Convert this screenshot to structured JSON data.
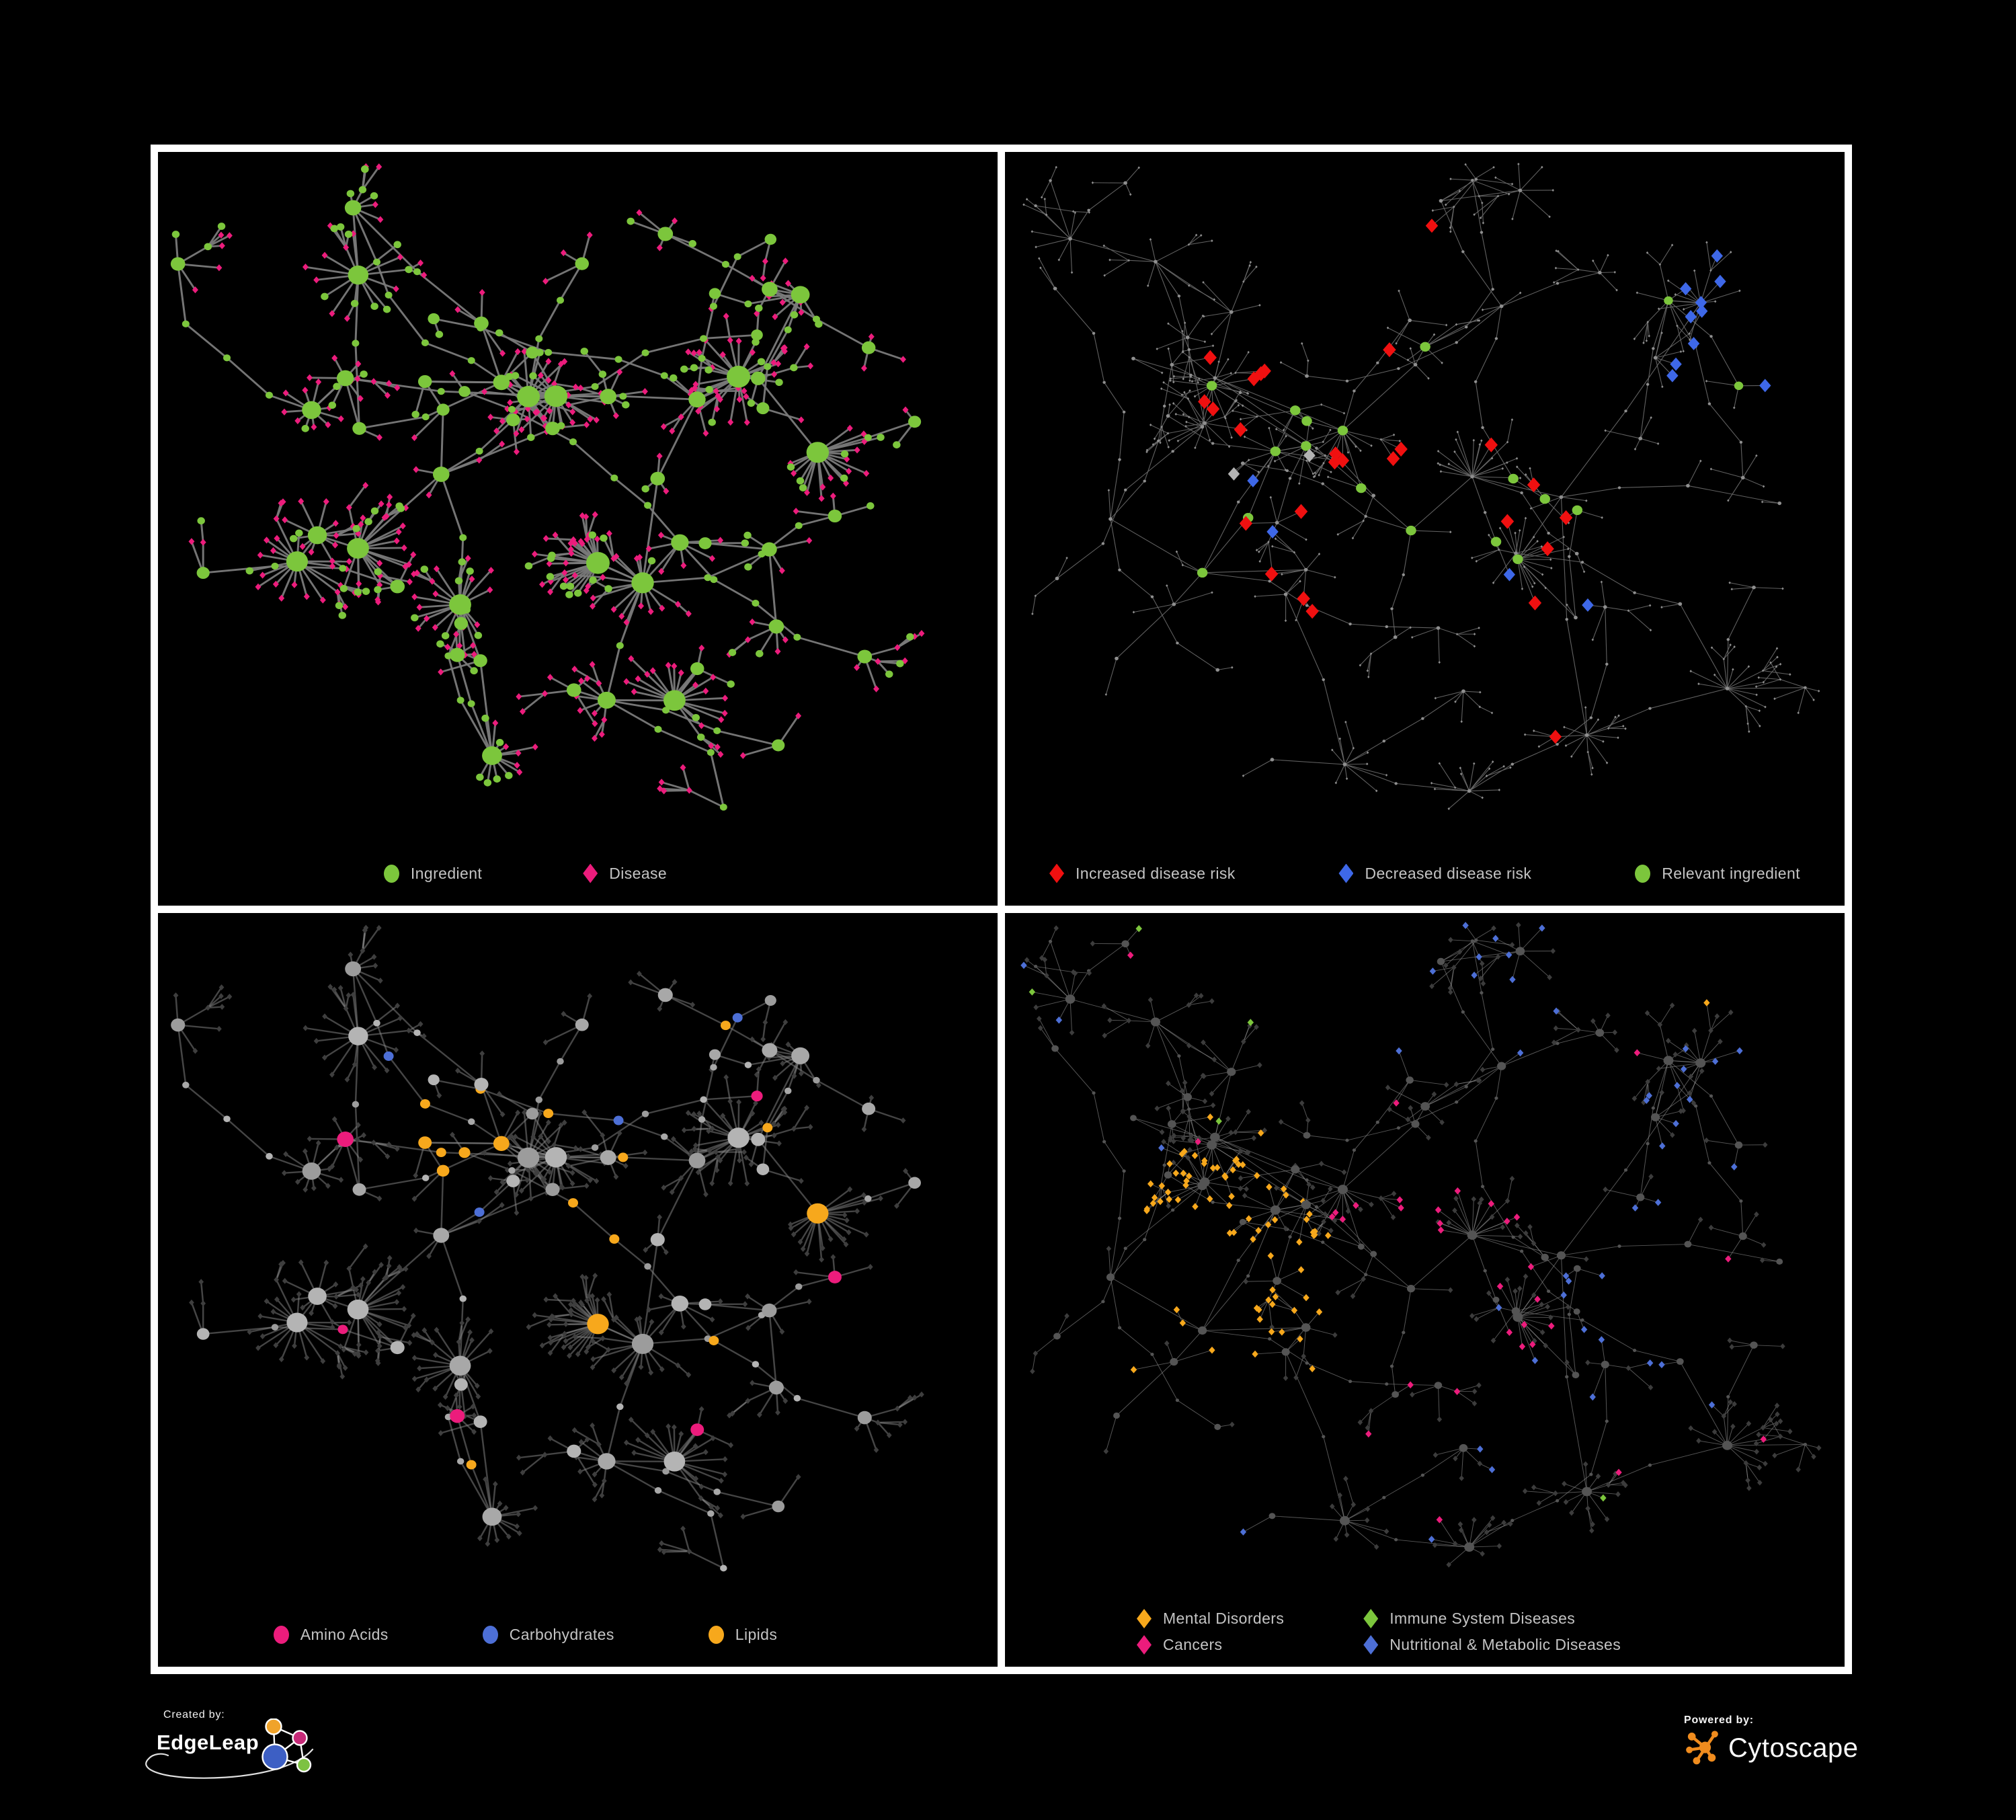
{
  "figure": {
    "background_color": "#000000",
    "panel_border_color": "#FFFFFF",
    "description": "Four views of an ingredient-disease association network"
  },
  "panels": [
    {
      "name": "ingredient-disease",
      "legend": [
        {
          "label": "Ingredient",
          "shape": "circle",
          "color": "#7CC63C"
        },
        {
          "label": "Disease",
          "shape": "diamond",
          "color": "#EC1C7C"
        }
      ],
      "palette": {
        "ingredient": "#7CC63C",
        "disease": "#EC1C7C",
        "edge": "#7A7A7A"
      }
    },
    {
      "name": "disease-risk",
      "legend": [
        {
          "label": "Increased disease risk",
          "shape": "diamond",
          "color": "#F01010"
        },
        {
          "label": "Decreased disease risk",
          "shape": "diamond",
          "color": "#3E68E8"
        },
        {
          "label": "Relevant ingredient",
          "shape": "circle",
          "color": "#7CC63C"
        }
      ],
      "palette": {
        "increased": "#F01010",
        "decreased": "#3E68E8",
        "relevant": "#7CC63C",
        "neutral": "#B3B3B3",
        "base_node": "#8F8F8F",
        "edge": "#6A6A6A"
      }
    },
    {
      "name": "nutrient-classes",
      "legend": [
        {
          "label": "Amino Acids",
          "shape": "circle",
          "color": "#EC1C7C"
        },
        {
          "label": "Carbohydrates",
          "shape": "circle",
          "color": "#4D6FD6"
        },
        {
          "label": "Lipids",
          "shape": "circle",
          "color": "#F7A81C"
        }
      ],
      "palette": {
        "amino": "#EC1C7C",
        "carb": "#4D6FD6",
        "lipid": "#F7A81C",
        "leaf": "#3E3E3E",
        "edge": "#8A8A8A"
      }
    },
    {
      "name": "disease-classes",
      "legend": [
        {
          "label": "Mental Disorders",
          "shape": "diamond",
          "color": "#F7A81C"
        },
        {
          "label": "Immune System Diseases",
          "shape": "diamond",
          "color": "#7CC63C"
        },
        {
          "label": "Cancers",
          "shape": "diamond",
          "color": "#EC1C7C"
        },
        {
          "label": "Nutritional & Metabolic Diseases",
          "shape": "diamond",
          "color": "#4D6FD6"
        }
      ],
      "palette": {
        "mental": "#F7A81C",
        "immune": "#7CC63C",
        "cancer": "#EC1C7C",
        "metabolic": "#4D6FD6",
        "node": "#545454",
        "leaf": "#3C3C3C",
        "edge": "#8F8F8F"
      }
    }
  ],
  "footer": {
    "created_by_label": "Created by:",
    "created_by_name": "EdgeLeap",
    "powered_by_label": "Powered by:",
    "powered_by_name": "Cytoscape",
    "edgeleap_colors": {
      "orange": "#F0A32A",
      "magenta": "#C62A78",
      "blue": "#3D5FC4",
      "green": "#7DC242"
    },
    "cytoscape_color": "#F08C1E"
  }
}
